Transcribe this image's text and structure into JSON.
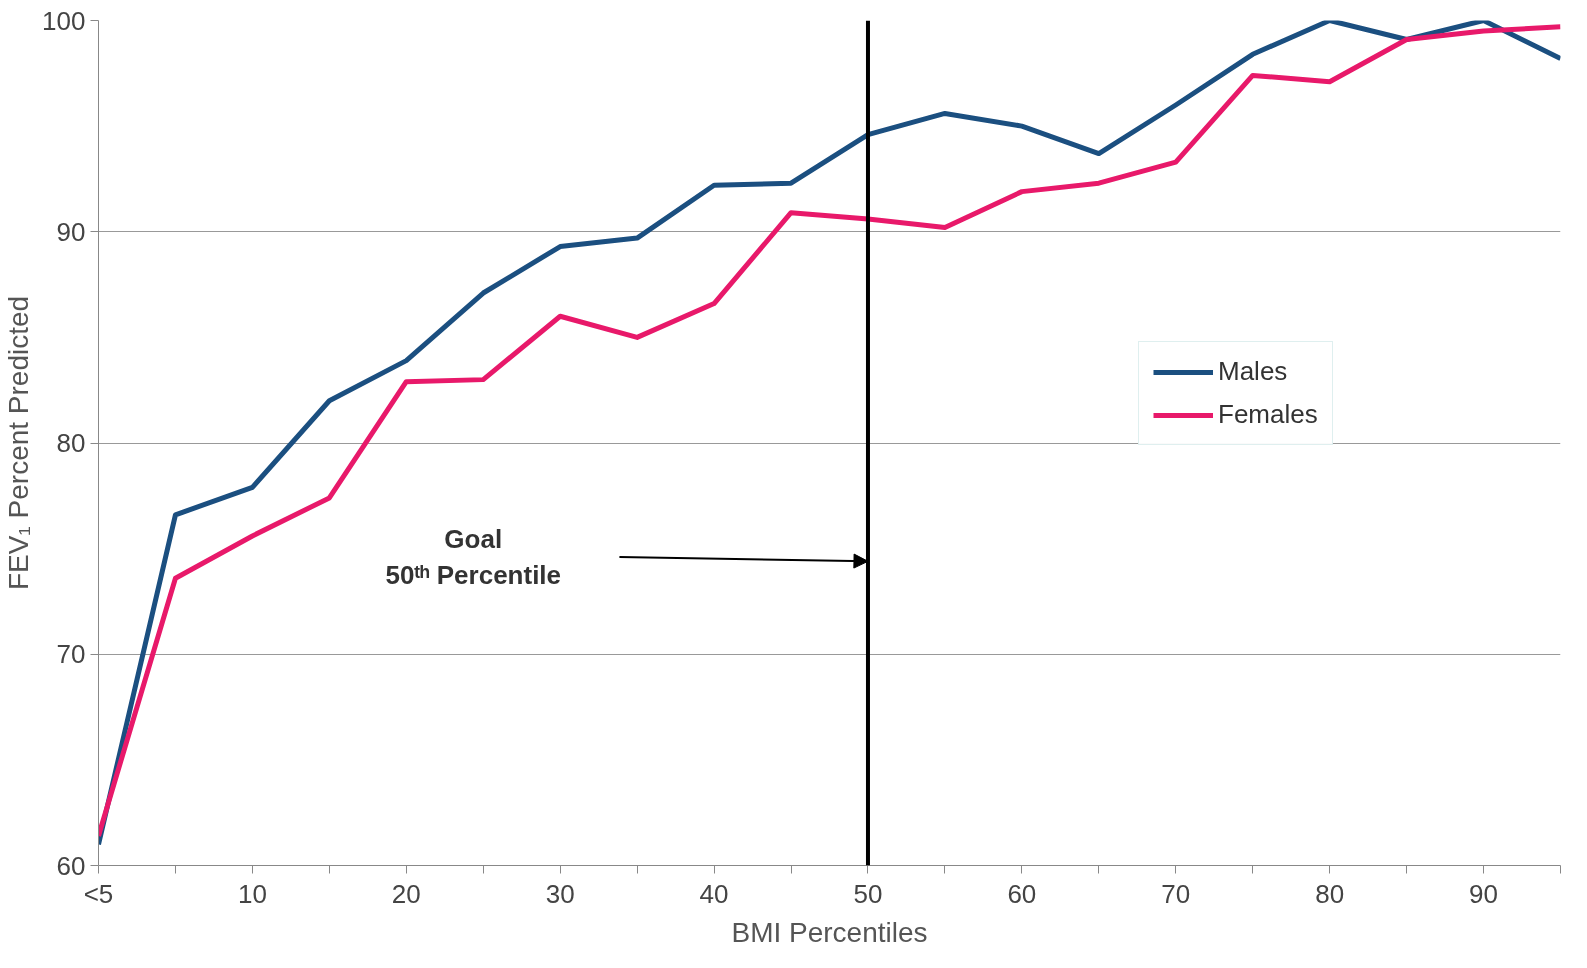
{
  "chart_data": {
    "type": "line",
    "xlabel": "BMI Percentiles",
    "ylabel": "FEV₁ Percent Predicted",
    "x": [
      0,
      5,
      10,
      15,
      20,
      25,
      30,
      35,
      40,
      45,
      50,
      55,
      60,
      65,
      70,
      75,
      80,
      85,
      90,
      95
    ],
    "xlim": [
      0,
      95
    ],
    "xticks": [
      {
        "value": 0,
        "label": "<5"
      },
      {
        "value": 5,
        "label": null
      },
      10,
      {
        "value": 15,
        "label": null
      },
      20,
      {
        "value": 25,
        "label": null
      },
      30,
      {
        "value": 35,
        "label": null
      },
      40,
      {
        "value": 45,
        "label": null
      },
      50,
      {
        "value": 55,
        "label": null
      },
      60,
      {
        "value": 65,
        "label": null
      },
      70,
      {
        "value": 75,
        "label": null
      },
      80,
      {
        "value": 85,
        "label": null
      },
      90,
      {
        "value": 95,
        "label": null
      }
    ],
    "ylim": [
      60,
      100
    ],
    "yticks": [
      60,
      70,
      80,
      90,
      100
    ],
    "series": [
      {
        "name": "Males",
        "color": "#1b4f80",
        "values": [
          61,
          76.6,
          77.9,
          82,
          83.9,
          87.1,
          89.3,
          89.7,
          92.2,
          92.3,
          94.6,
          95.6,
          95,
          93.7,
          96,
          98.4,
          100,
          99.1,
          100,
          98.2
        ]
      },
      {
        "name": "Females",
        "color": "#e8196a",
        "values": [
          61.4,
          73.6,
          75.6,
          77.4,
          82.9,
          83,
          86,
          85,
          86.6,
          90.9,
          90.6,
          90.2,
          91.9,
          92.3,
          93.3,
          97.4,
          97.1,
          99.1,
          99.5,
          99.7
        ]
      }
    ],
    "ref_lines": [
      {
        "axis": "x",
        "value": 50,
        "color": "#000000"
      }
    ],
    "annotations": [
      "Goal\n50ᵗʰ Percentile"
    ],
    "grid": "y",
    "legend": "right",
    "marker": "none",
    "line_style": "solid"
  }
}
